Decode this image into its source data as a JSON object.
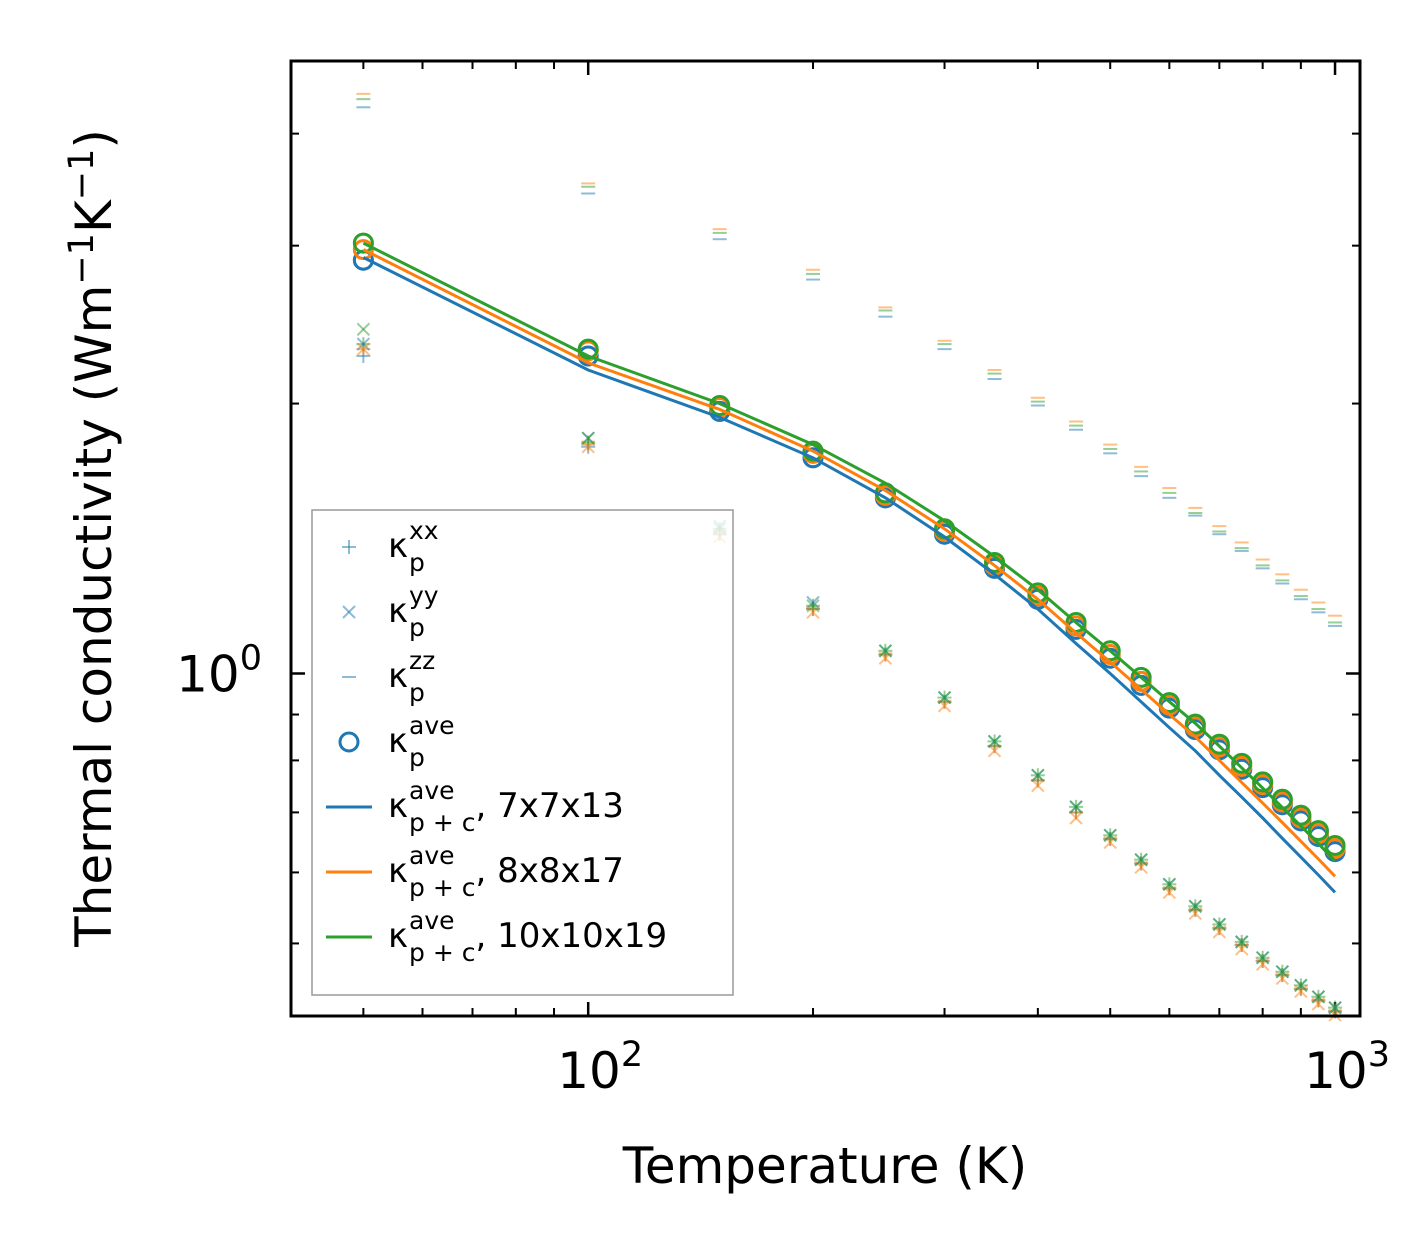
{
  "chart_data": {
    "type": "scatter",
    "xlabel": "Temperature (K)",
    "ylabel_prefix": "Thermal conductivity (Wm",
    "ylabel_mid": "K",
    "ylabel_suffix": ")",
    "ylabel_exp": "−1",
    "xscale": "log",
    "yscale": "log",
    "xlim": [
      40,
      1080
    ],
    "ylim": [
      0.415,
      4.82
    ],
    "xticks": [
      {
        "base": "10",
        "exp": "2",
        "value": 100
      },
      {
        "base": "10",
        "exp": "3",
        "value": 1000
      }
    ],
    "yticks": [
      {
        "base": "10",
        "exp": "0",
        "value": 1
      }
    ],
    "x": [
      50,
      100,
      150,
      200,
      250,
      300,
      350,
      400,
      450,
      500,
      550,
      600,
      650,
      700,
      750,
      800,
      850,
      900,
      950,
      1000
    ],
    "colors": {
      "C0": "#1f77b4",
      "C1": "#ff7f0e",
      "C2": "#2ca02c"
    },
    "series": [
      {
        "name": "kp_xx C0",
        "marker": "plus",
        "color": "C0",
        "values": [
          2.26,
          1.79,
          1.43,
          1.18,
          1.05,
          0.93,
          0.83,
          0.76,
          0.7,
          0.654,
          0.614,
          0.576,
          0.545,
          0.52,
          0.498,
          0.478,
          0.461,
          0.445,
          0.432,
          0.42
        ]
      },
      {
        "name": "kp_xx C1",
        "marker": "plus",
        "color": "C1",
        "values": [
          2.3,
          1.8,
          1.44,
          1.18,
          1.05,
          0.93,
          0.83,
          0.76,
          0.7,
          0.654,
          0.614,
          0.576,
          0.545,
          0.52,
          0.498,
          0.478,
          0.461,
          0.445,
          0.432,
          0.42
        ]
      },
      {
        "name": "kp_xx C2",
        "marker": "plus",
        "color": "C2",
        "values": [
          2.33,
          1.81,
          1.45,
          1.19,
          1.06,
          0.94,
          0.84,
          0.77,
          0.71,
          0.66,
          0.62,
          0.582,
          0.55,
          0.525,
          0.502,
          0.482,
          0.465,
          0.449,
          0.436,
          0.424
        ]
      },
      {
        "name": "kp_yy C0",
        "marker": "x",
        "color": "C0",
        "values": [
          2.33,
          1.83,
          1.46,
          1.2,
          1.06,
          0.94,
          0.84,
          0.77,
          0.71,
          0.66,
          0.62,
          0.582,
          0.55,
          0.525,
          0.502,
          0.482,
          0.465,
          0.449,
          0.436,
          0.424
        ]
      },
      {
        "name": "kp_yy C1",
        "marker": "x",
        "color": "C1",
        "values": [
          2.3,
          1.79,
          1.42,
          1.17,
          1.04,
          0.92,
          0.82,
          0.75,
          0.69,
          0.648,
          0.608,
          0.57,
          0.54,
          0.515,
          0.493,
          0.474,
          0.457,
          0.442,
          0.428,
          0.416
        ]
      },
      {
        "name": "kp_yy C2",
        "marker": "x",
        "color": "C2",
        "values": [
          2.42,
          1.83,
          1.45,
          1.19,
          1.06,
          0.94,
          0.84,
          0.77,
          0.71,
          0.66,
          0.62,
          0.582,
          0.55,
          0.525,
          0.502,
          0.482,
          0.465,
          0.449,
          0.436,
          0.424
        ]
      },
      {
        "name": "kp_zz C0",
        "marker": "hline",
        "color": "C0",
        "values": [
          4.28,
          3.43,
          3.05,
          2.75,
          2.5,
          2.3,
          2.13,
          1.99,
          1.87,
          1.76,
          1.66,
          1.57,
          1.5,
          1.43,
          1.37,
          1.31,
          1.26,
          1.21,
          1.17,
          1.13
        ]
      },
      {
        "name": "kp_zz C1",
        "marker": "hline",
        "color": "C1",
        "values": [
          4.43,
          3.52,
          3.13,
          2.82,
          2.56,
          2.35,
          2.18,
          2.03,
          1.91,
          1.8,
          1.7,
          1.61,
          1.53,
          1.46,
          1.4,
          1.34,
          1.29,
          1.24,
          1.2,
          1.16
        ]
      },
      {
        "name": "kp_zz C2",
        "marker": "hline",
        "color": "C2",
        "values": [
          4.37,
          3.49,
          3.1,
          2.79,
          2.54,
          2.33,
          2.16,
          2.01,
          1.89,
          1.78,
          1.68,
          1.59,
          1.51,
          1.44,
          1.38,
          1.32,
          1.27,
          1.22,
          1.18,
          1.14
        ]
      },
      {
        "name": "kp_ave C0",
        "marker": "circle",
        "color": "C0",
        "values": [
          2.89,
          2.26,
          1.96,
          1.74,
          1.57,
          1.43,
          1.31,
          1.21,
          1.12,
          1.04,
          0.97,
          0.915,
          0.866,
          0.822,
          0.782,
          0.746,
          0.714,
          0.685,
          0.658,
          0.633
        ]
      },
      {
        "name": "kp_ave C1",
        "marker": "circle",
        "color": "C1",
        "values": [
          2.97,
          2.29,
          1.98,
          1.76,
          1.58,
          1.44,
          1.32,
          1.22,
          1.13,
          1.05,
          0.98,
          0.922,
          0.872,
          0.828,
          0.788,
          0.752,
          0.719,
          0.69,
          0.663,
          0.638
        ]
      },
      {
        "name": "kp_ave C2",
        "marker": "circle",
        "color": "C2",
        "values": [
          3.02,
          2.3,
          1.99,
          1.77,
          1.59,
          1.45,
          1.33,
          1.23,
          1.14,
          1.06,
          0.99,
          0.928,
          0.878,
          0.834,
          0.794,
          0.757,
          0.724,
          0.695,
          0.668,
          0.643
        ]
      },
      {
        "name": "kpc_ave 7x7x13",
        "marker": "line",
        "color": "C0",
        "values": [
          2.91,
          2.18,
          1.93,
          1.74,
          1.57,
          1.42,
          1.29,
          1.18,
          1.08,
          1.0,
          0.93,
          0.87,
          0.82,
          0.77,
          0.728,
          0.69,
          0.655,
          0.624,
          0.596,
          0.57
        ]
      },
      {
        "name": "kpc_ave 8x8x17",
        "marker": "line",
        "color": "C1",
        "values": [
          2.97,
          2.22,
          1.97,
          1.77,
          1.6,
          1.45,
          1.32,
          1.21,
          1.11,
          1.03,
          0.96,
          0.9,
          0.85,
          0.8,
          0.756,
          0.717,
          0.682,
          0.65,
          0.621,
          0.594
        ]
      },
      {
        "name": "kpc_ave 10x10x19",
        "marker": "line",
        "color": "C2",
        "values": [
          3.02,
          2.26,
          2.0,
          1.8,
          1.63,
          1.48,
          1.35,
          1.24,
          1.14,
          1.06,
          0.99,
          0.93,
          0.88,
          0.83,
          0.785,
          0.745,
          0.709,
          0.676,
          0.646,
          0.618
        ]
      }
    ],
    "legend": {
      "placement": "lower-left",
      "entries": [
        {
          "marker": "plus",
          "color": "C0",
          "alpha": 0.5,
          "sym": "κ",
          "sup": "xx",
          "sub": "p",
          "tail": ""
        },
        {
          "marker": "x",
          "color": "C0",
          "alpha": 0.5,
          "sym": "κ",
          "sup": "yy",
          "sub": "p",
          "tail": ""
        },
        {
          "marker": "hline",
          "color": "C0",
          "alpha": 0.5,
          "sym": "κ",
          "sup": "zz",
          "sub": "p",
          "tail": ""
        },
        {
          "marker": "circle",
          "color": "C0",
          "alpha": 1,
          "sym": "κ",
          "sup": "ave",
          "sub": "p",
          "tail": ""
        },
        {
          "marker": "line",
          "color": "C0",
          "alpha": 1,
          "sym": "κ",
          "sup": "ave",
          "sub": "p + c",
          "tail": ", 7x7x13"
        },
        {
          "marker": "line",
          "color": "C1",
          "alpha": 1,
          "sym": "κ",
          "sup": "ave",
          "sub": "p + c",
          "tail": ", 8x8x17"
        },
        {
          "marker": "line",
          "color": "C2",
          "alpha": 1,
          "sym": "κ",
          "sup": "ave",
          "sub": "p + c",
          "tail": ", 10x10x19"
        }
      ]
    }
  }
}
